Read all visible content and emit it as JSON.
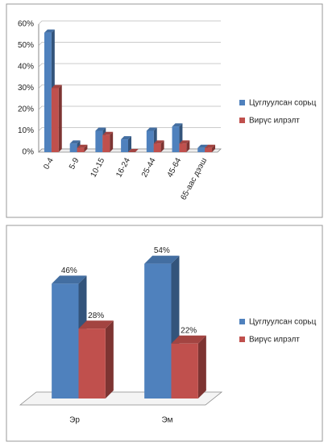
{
  "charts": [
    {
      "chart_data": {
        "type": "bar",
        "categories": [
          "0-4",
          "5-9",
          "10-15",
          "16-24",
          "25-44",
          "45-64",
          "65-аас дээш"
        ],
        "series": [
          {
            "name": "Цуглуулсан сорьц",
            "color": "#4f81bd",
            "values": [
              56,
              4,
              10,
              6,
              10,
              12,
              2
            ]
          },
          {
            "name": "Вирүс илрэлт",
            "color": "#c0504d",
            "values": [
              30,
              2,
              8,
              0,
              4,
              4,
              2
            ]
          }
        ],
        "ylim": [
          0,
          60
        ],
        "yticks": [
          {
            "value": 0,
            "label": "0%"
          },
          {
            "value": 10,
            "label": "10%"
          },
          {
            "value": 20,
            "label": "20%"
          },
          {
            "value": 30,
            "label": "30%"
          },
          {
            "value": 40,
            "label": "40%"
          },
          {
            "value": 50,
            "label": "50%"
          },
          {
            "value": 60,
            "label": "60%"
          }
        ],
        "grid": true,
        "legend": "right"
      }
    },
    {
      "chart_data": {
        "type": "bar",
        "categories": [
          "Эр",
          "Эм"
        ],
        "series": [
          {
            "name": "Цуглуулсан сорьц",
            "color": "#4f81bd",
            "values": [
              46,
              54
            ],
            "value_labels": [
              "46%",
              "54%"
            ]
          },
          {
            "name": "Вирүс илрэлт",
            "color": "#c0504d",
            "values": [
              28,
              22
            ],
            "value_labels": [
              "28%",
              "22%"
            ]
          }
        ],
        "grid": false,
        "legend": "right"
      }
    }
  ]
}
